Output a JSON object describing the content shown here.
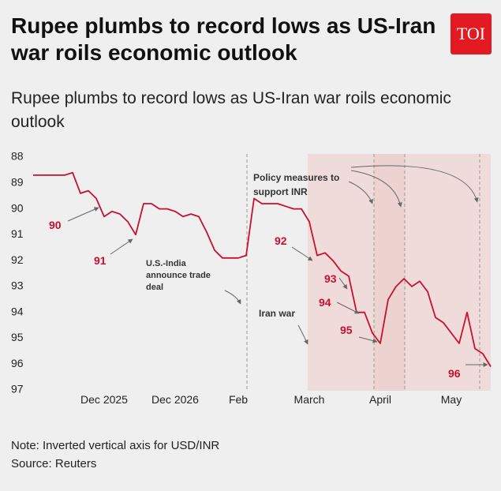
{
  "chart_data": {
    "type": "line",
    "title": "Rupee plumbs to record lows as US-Iran war roils economic outlook",
    "logo": "TOI",
    "subtitle": "Rupee plumbs to record lows as US-Iran war roils economic outlook",
    "note": "Note: Inverted vertical axis for USD/INR",
    "source": "Source: Reuters",
    "categories": [
      null,
      null,
      null,
      null,
      null,
      null,
      null,
      null,
      null,
      "Dec 2025",
      null,
      null,
      null,
      null,
      null,
      null,
      null,
      null,
      "Dec 2026",
      null,
      null,
      null,
      null,
      null,
      null,
      null,
      "Feb",
      null,
      null,
      null,
      null,
      null,
      null,
      null,
      null,
      "March",
      null,
      null,
      null,
      null,
      null,
      null,
      null,
      null,
      "April",
      null,
      null,
      null,
      null,
      null,
      null,
      null,
      null,
      "May",
      null,
      null,
      null,
      null,
      null
    ],
    "values": [
      88.7,
      88.7,
      88.7,
      88.7,
      88.7,
      88.6,
      89.4,
      89.3,
      89.6,
      90.3,
      90.1,
      90.2,
      90.5,
      91.0,
      89.8,
      89.8,
      90.0,
      90.0,
      90.1,
      90.3,
      90.2,
      90.3,
      90.9,
      91.6,
      91.9,
      91.9,
      91.9,
      91.8,
      89.6,
      89.8,
      89.8,
      89.8,
      89.9,
      90.0,
      90.0,
      90.5,
      91.8,
      91.7,
      92.0,
      92.4,
      92.6,
      94.0,
      94.0,
      94.8,
      95.2,
      93.5,
      93.0,
      92.7,
      93.0,
      92.8,
      93.2,
      94.2,
      94.4,
      94.8,
      95.2,
      94.0,
      95.4,
      95.6,
      96.1
    ],
    "color": "#c8102e",
    "ylim": [
      88,
      97
    ],
    "yticks": [
      88,
      89,
      90,
      91,
      92,
      93,
      94,
      95,
      96,
      97
    ],
    "y_inverted": true,
    "annotations": [
      "90",
      "91",
      "92",
      "93",
      "94",
      "95",
      "96",
      "U.S.-India announce trade deal",
      "Iran war",
      "Policy measures to support INR"
    ]
  }
}
